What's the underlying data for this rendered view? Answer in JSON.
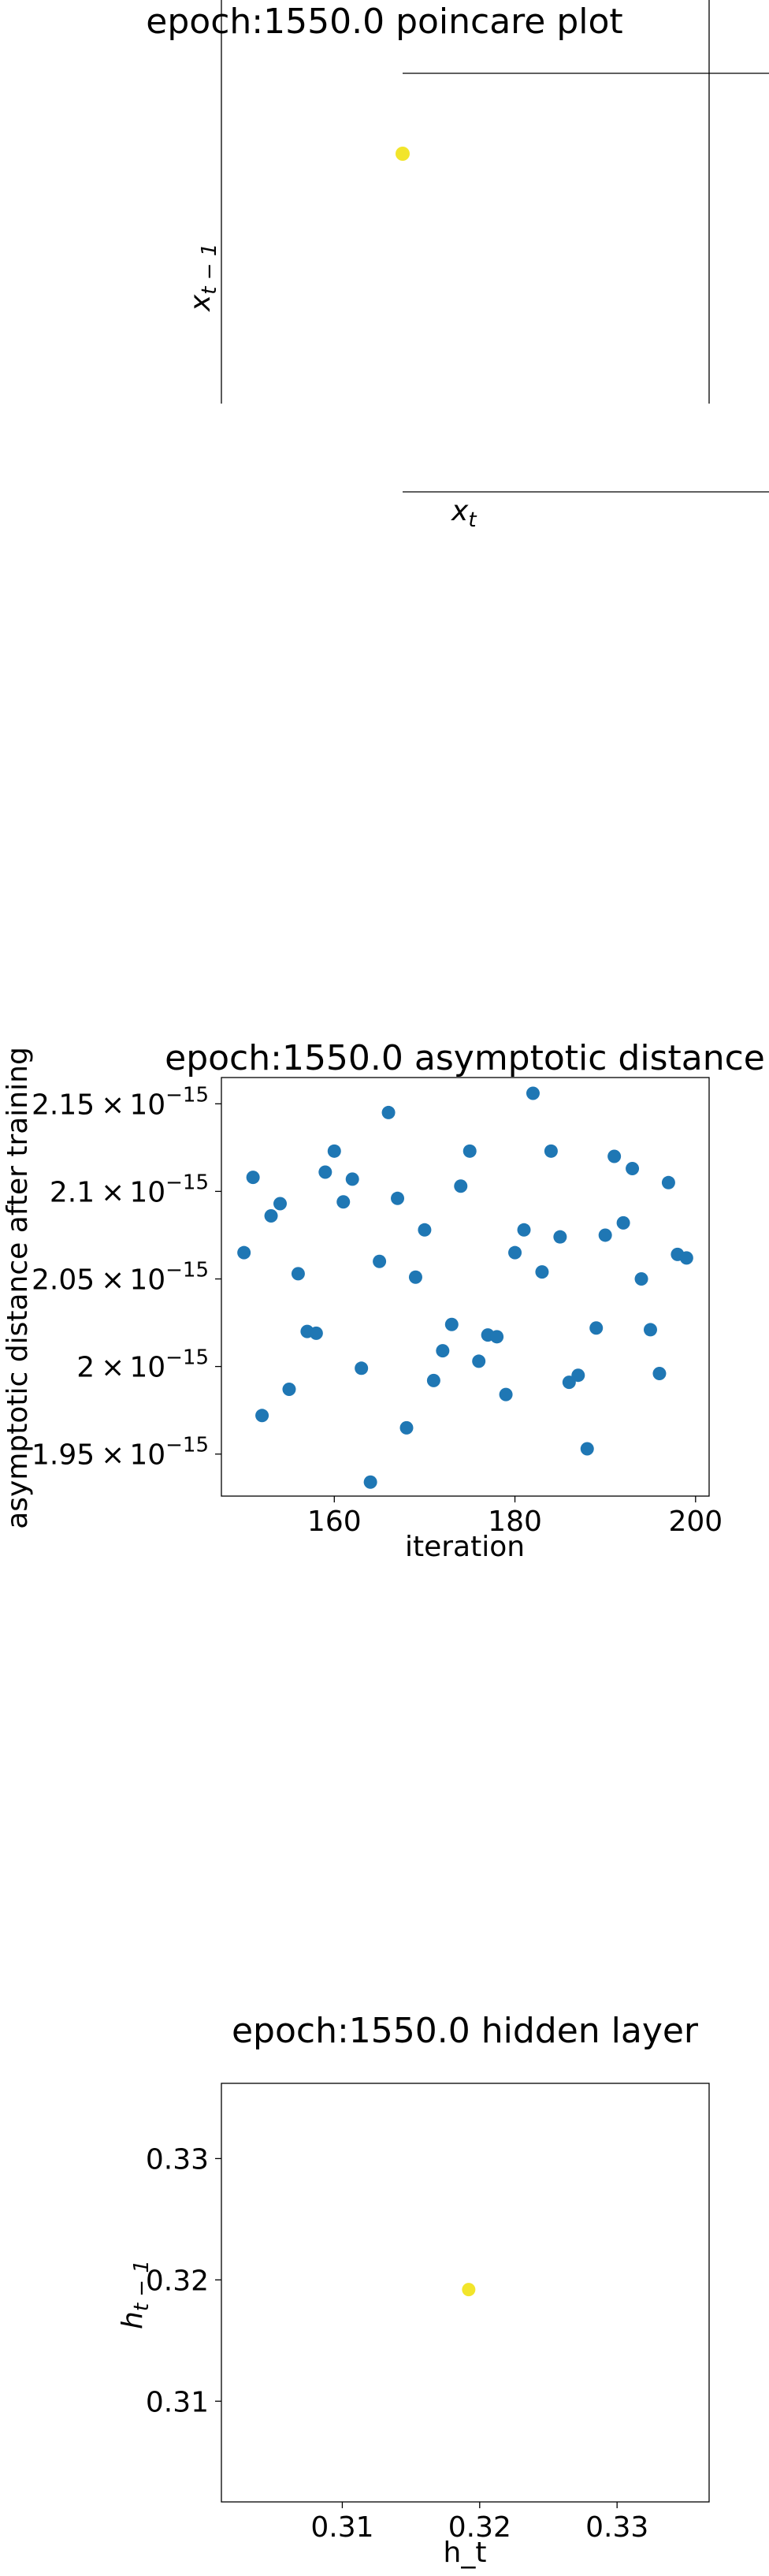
{
  "chart_data": [
    {
      "type": "scatter",
      "title": "epoch:1550.0 poincare plot",
      "xlabel": "x_t",
      "ylabel": "x_{t-1}",
      "xlabel_display": {
        "base": "x",
        "sub": "t"
      },
      "ylabel_display": {
        "base": "x",
        "sub": "t − 1"
      },
      "points": [
        {
          "x": 0,
          "y": 0
        }
      ],
      "point_color": "#f2e52b",
      "axes": "centered spines, no ticks",
      "grid": false
    },
    {
      "type": "scatter",
      "title": "epoch:1550.0 asymptotic distance",
      "xlabel": "iteration",
      "ylabel": "asymptotic distance after training",
      "xlim": [
        147.5,
        201.5
      ],
      "ylim": [
        1.926e-15,
        2.165e-15
      ],
      "x_ticks": [
        160,
        180,
        200
      ],
      "x_tick_labels": [
        "160",
        "180",
        "200"
      ],
      "y_ticks": [
        1.95e-15,
        2e-15,
        2.05e-15,
        2.1e-15,
        2.15e-15
      ],
      "y_tick_labels": [
        {
          "mantissa": "1.95",
          "cross": "×",
          "base": "10",
          "exp": "−15"
        },
        {
          "mantissa": "2",
          "cross": "×",
          "base": "10",
          "exp": "−15"
        },
        {
          "mantissa": "2.05",
          "cross": "×",
          "base": "10",
          "exp": "−15"
        },
        {
          "mantissa": "2.1",
          "cross": "×",
          "base": "10",
          "exp": "−15"
        },
        {
          "mantissa": "2.15",
          "cross": "×",
          "base": "10",
          "exp": "−15"
        }
      ],
      "point_color": "#1f77b4",
      "grid": false,
      "points": [
        {
          "x": 150,
          "y": 2.065e-15
        },
        {
          "x": 151,
          "y": 2.108e-15
        },
        {
          "x": 152,
          "y": 1.972e-15
        },
        {
          "x": 153,
          "y": 2.086e-15
        },
        {
          "x": 154,
          "y": 2.093e-15
        },
        {
          "x": 155,
          "y": 1.987e-15
        },
        {
          "x": 156,
          "y": 2.053e-15
        },
        {
          "x": 157,
          "y": 2.02e-15
        },
        {
          "x": 158,
          "y": 2.019e-15
        },
        {
          "x": 159,
          "y": 2.111e-15
        },
        {
          "x": 160,
          "y": 2.123e-15
        },
        {
          "x": 161,
          "y": 2.094e-15
        },
        {
          "x": 162,
          "y": 2.107e-15
        },
        {
          "x": 163,
          "y": 1.999e-15
        },
        {
          "x": 164,
          "y": 1.934e-15
        },
        {
          "x": 165,
          "y": 2.06e-15
        },
        {
          "x": 166,
          "y": 2.145e-15
        },
        {
          "x": 167,
          "y": 2.096e-15
        },
        {
          "x": 168,
          "y": 1.965e-15
        },
        {
          "x": 169,
          "y": 2.051e-15
        },
        {
          "x": 170,
          "y": 2.078e-15
        },
        {
          "x": 171,
          "y": 1.992e-15
        },
        {
          "x": 172,
          "y": 2.009e-15
        },
        {
          "x": 173,
          "y": 2.024e-15
        },
        {
          "x": 174,
          "y": 2.103e-15
        },
        {
          "x": 175,
          "y": 2.123e-15
        },
        {
          "x": 176,
          "y": 2.003e-15
        },
        {
          "x": 177,
          "y": 2.018e-15
        },
        {
          "x": 178,
          "y": 2.017e-15
        },
        {
          "x": 179,
          "y": 1.984e-15
        },
        {
          "x": 180,
          "y": 2.065e-15
        },
        {
          "x": 181,
          "y": 2.078e-15
        },
        {
          "x": 182,
          "y": 2.156e-15
        },
        {
          "x": 183,
          "y": 2.054e-15
        },
        {
          "x": 184,
          "y": 2.123e-15
        },
        {
          "x": 185,
          "y": 2.074e-15
        },
        {
          "x": 186,
          "y": 1.991e-15
        },
        {
          "x": 187,
          "y": 1.995e-15
        },
        {
          "x": 188,
          "y": 1.953e-15
        },
        {
          "x": 189,
          "y": 2.022e-15
        },
        {
          "x": 190,
          "y": 2.075e-15
        },
        {
          "x": 191,
          "y": 2.12e-15
        },
        {
          "x": 192,
          "y": 2.082e-15
        },
        {
          "x": 193,
          "y": 2.113e-15
        },
        {
          "x": 194,
          "y": 2.05e-15
        },
        {
          "x": 195,
          "y": 2.021e-15
        },
        {
          "x": 196,
          "y": 1.996e-15
        },
        {
          "x": 197,
          "y": 2.105e-15
        },
        {
          "x": 198,
          "y": 2.064e-15
        },
        {
          "x": 199,
          "y": 2.062e-15
        }
      ]
    },
    {
      "type": "scatter",
      "title": "epoch:1550.0 hidden layer",
      "xlabel": "h_t",
      "ylabel": "h_{t-1}",
      "ylabel_display": {
        "base": "h",
        "sub": "t − 1"
      },
      "xlim": [
        0.3012,
        0.3367
      ],
      "ylim": [
        0.3017,
        0.3362
      ],
      "x_ticks": [
        0.31,
        0.32,
        0.33
      ],
      "x_tick_labels": [
        "0.31",
        "0.32",
        "0.33"
      ],
      "y_ticks": [
        0.31,
        0.32,
        0.33
      ],
      "y_tick_labels": [
        "0.31",
        "0.32",
        "0.33"
      ],
      "points": [
        {
          "x": 0.3192,
          "y": 0.3192
        }
      ],
      "point_color": "#f2e52b",
      "grid": false
    }
  ]
}
